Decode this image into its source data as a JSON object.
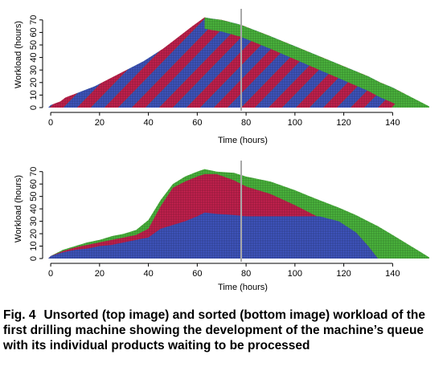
{
  "chart_data": [
    {
      "id": "top",
      "type": "area",
      "title": "",
      "xlabel": "Time (hours)",
      "ylabel": "Workload (hours)",
      "xlim": [
        -2,
        157
      ],
      "ylim": [
        0,
        75
      ],
      "xticks": [
        0,
        20,
        40,
        60,
        80,
        100,
        120,
        140
      ],
      "yticks": [
        0,
        10,
        20,
        30,
        40,
        50,
        60,
        70
      ],
      "grid": false,
      "vline_x": 78,
      "colors": {
        "blue": "#4157c4",
        "red": "#c92250",
        "green": "#4dbb3f",
        "gray": "#a8a8a8"
      },
      "total_workload": {
        "x": [
          -1,
          0,
          4,
          6,
          10,
          14,
          18,
          22,
          26,
          30,
          34,
          38,
          42,
          46,
          50,
          54,
          58,
          63,
          66,
          70,
          74,
          78,
          82,
          86,
          90,
          95,
          100,
          105,
          110,
          115,
          120,
          125,
          130,
          135,
          140,
          145,
          150,
          155
        ],
        "y": [
          0,
          2,
          5,
          8,
          11,
          14,
          17,
          21,
          25,
          29,
          33,
          37,
          42,
          47,
          53,
          59,
          65,
          72,
          71,
          70,
          68,
          66,
          63,
          60,
          57,
          53,
          49,
          45,
          41,
          37,
          33,
          29,
          25,
          20,
          16,
          11,
          6,
          1
        ]
      },
      "series_order": [
        "Blue/Red interleaved queue",
        "Green tail"
      ]
    },
    {
      "id": "bottom",
      "type": "area",
      "title": "",
      "xlabel": "Time (hours)",
      "ylabel": "Workload (hours)",
      "xlim": [
        -2,
        157
      ],
      "ylim": [
        0,
        75
      ],
      "xticks": [
        0,
        20,
        40,
        60,
        80,
        100,
        120,
        140
      ],
      "yticks": [
        0,
        10,
        20,
        30,
        40,
        50,
        60,
        70
      ],
      "grid": false,
      "vline_x": 78,
      "colors": {
        "blue": "#4157c4",
        "red": "#c92250",
        "green": "#4dbb3f",
        "gray": "#a8a8a8"
      },
      "series": [
        {
          "color": "blue",
          "x": [
            -1,
            0,
            5,
            10,
            15,
            20,
            25,
            30,
            35,
            40,
            45,
            50,
            55,
            60,
            63,
            68,
            75,
            80,
            90,
            100,
            110,
            118,
            125,
            130,
            134
          ],
          "y": [
            0,
            2,
            5,
            7,
            8,
            10,
            11,
            13,
            15,
            17,
            24,
            27,
            30,
            34,
            37,
            36,
            35,
            34,
            34,
            34,
            34,
            30,
            21,
            10,
            0
          ]
        },
        {
          "color": "red",
          "x": [
            -1,
            0,
            5,
            10,
            15,
            20,
            25,
            30,
            35,
            40,
            45,
            50,
            55,
            60,
            63,
            68,
            75,
            80,
            90,
            100,
            110,
            118,
            125,
            130,
            134
          ],
          "y": [
            0,
            2,
            6,
            9,
            11,
            13,
            15,
            17,
            19,
            24,
            42,
            57,
            62,
            66,
            68,
            68,
            63,
            58,
            52,
            43,
            33,
            25,
            21,
            10,
            0
          ]
        },
        {
          "color": "green",
          "x": [
            -1,
            0,
            5,
            10,
            15,
            20,
            25,
            30,
            35,
            40,
            45,
            50,
            55,
            60,
            63,
            68,
            75,
            80,
            90,
            100,
            110,
            118,
            125,
            130,
            134,
            140,
            145,
            150,
            155
          ],
          "y": [
            0,
            2,
            7,
            10,
            13,
            15,
            18,
            20,
            23,
            31,
            47,
            60,
            66,
            70,
            72,
            70,
            69,
            66,
            62,
            55,
            47,
            41,
            35,
            30,
            26,
            19,
            13,
            7,
            1
          ]
        }
      ]
    }
  ],
  "caption": {
    "figure_number": "Fig. 4",
    "text": "Unsorted (top image) and sorted (bottom image) workload of the first drilling machine showing the development of the machine’s queue with its individual products waiting to be processed"
  }
}
